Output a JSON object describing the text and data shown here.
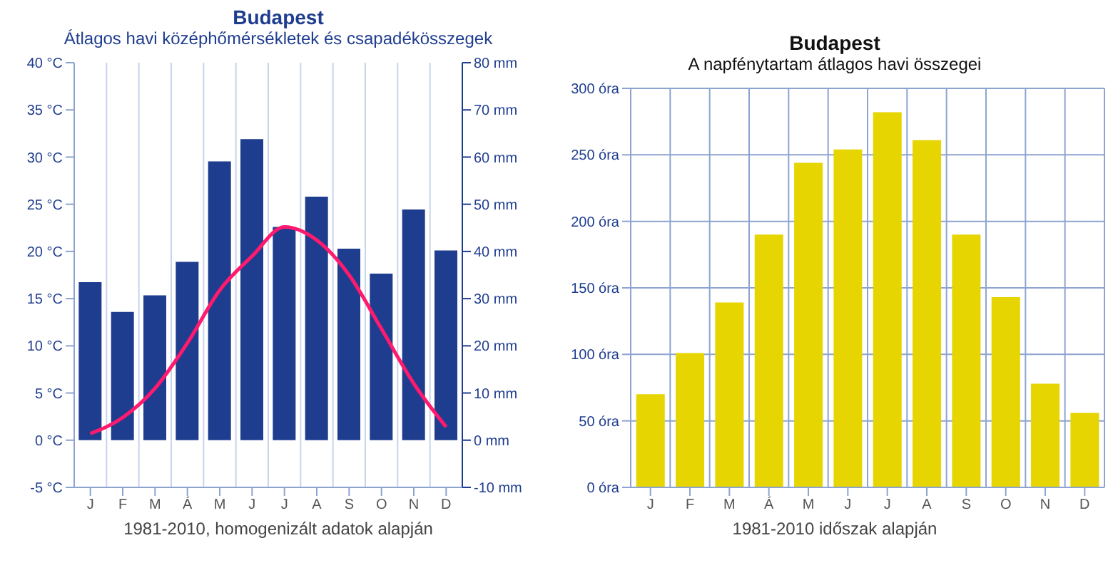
{
  "chart_data": [
    {
      "type": "bar",
      "title": "Budapest",
      "subtitle": "Átlagos havi középhőmérsékletek és csapadékösszegek",
      "categories": [
        "J",
        "F",
        "M",
        "Á",
        "M",
        "J",
        "J",
        "A",
        "S",
        "O",
        "N",
        "D"
      ],
      "series": [
        {
          "axis": "y2",
          "color": "#1f3d8f",
          "values": [
            33.5,
            27.2,
            30.7,
            37.8,
            59.1,
            63.8,
            45.2,
            51.6,
            40.6,
            35.3,
            48.9,
            40.2
          ]
        },
        {
          "type": "line",
          "axis": "y",
          "color": "#ff1a6e",
          "values": [
            0.7,
            2.4,
            5.5,
            10.3,
            15.9,
            19.5,
            22.6,
            21.2,
            17.5,
            11.8,
            6.0,
            1.4
          ]
        }
      ],
      "ylim": [
        -5,
        40
      ],
      "yticks": [
        {
          "value": -5,
          "label": "-5 °C"
        },
        {
          "value": 0,
          "label": "0 °C"
        },
        {
          "value": 5,
          "label": "5 °C"
        },
        {
          "value": 10,
          "label": "10 °C"
        },
        {
          "value": 15,
          "label": "15 °C"
        },
        {
          "value": 20,
          "label": "20 °C"
        },
        {
          "value": 25,
          "label": "25 °C"
        },
        {
          "value": 30,
          "label": "30 °C"
        },
        {
          "value": 35,
          "label": "35 °C"
        },
        {
          "value": 40,
          "label": "40 °C"
        }
      ],
      "y2lim": [
        -10,
        80
      ],
      "y2ticks": [
        {
          "value": -10,
          "label": "-10 mm"
        },
        {
          "value": 0,
          "label": "0 mm"
        },
        {
          "value": 10,
          "label": "10 mm"
        },
        {
          "value": 20,
          "label": "20 mm"
        },
        {
          "value": 30,
          "label": "30 mm"
        },
        {
          "value": 40,
          "label": "40 mm"
        },
        {
          "value": 50,
          "label": "50 mm"
        },
        {
          "value": 60,
          "label": "60 mm"
        },
        {
          "value": 70,
          "label": "70 mm"
        },
        {
          "value": 80,
          "label": "80 mm"
        }
      ],
      "grid": "x",
      "legend": false,
      "marker": "none",
      "line_style": "solid",
      "annotations": [
        "1981-2010, homogenizált adatok alapján"
      ]
    },
    {
      "type": "bar",
      "title": "Budapest",
      "subtitle": "A napfénytartam átlagos havi összegei",
      "categories": [
        "J",
        "F",
        "M",
        "Á",
        "M",
        "J",
        "J",
        "A",
        "S",
        "O",
        "N",
        "D"
      ],
      "series": [
        {
          "color": "#e6d500",
          "values": [
            70,
            101,
            139,
            190,
            244,
            254,
            282,
            261,
            190,
            143,
            78,
            56
          ]
        }
      ],
      "ylim": [
        0,
        300
      ],
      "yticks": [
        {
          "value": 0,
          "label": "0 óra"
        },
        {
          "value": 50,
          "label": "50 óra"
        },
        {
          "value": 100,
          "label": "100 óra"
        },
        {
          "value": 150,
          "label": "150 óra"
        },
        {
          "value": 200,
          "label": "200 óra"
        },
        {
          "value": 250,
          "label": "250 óra"
        },
        {
          "value": 300,
          "label": "300 óra"
        }
      ],
      "grid": true,
      "legend": false,
      "annotations": [
        "1981-2010 időszak alapján"
      ]
    }
  ]
}
